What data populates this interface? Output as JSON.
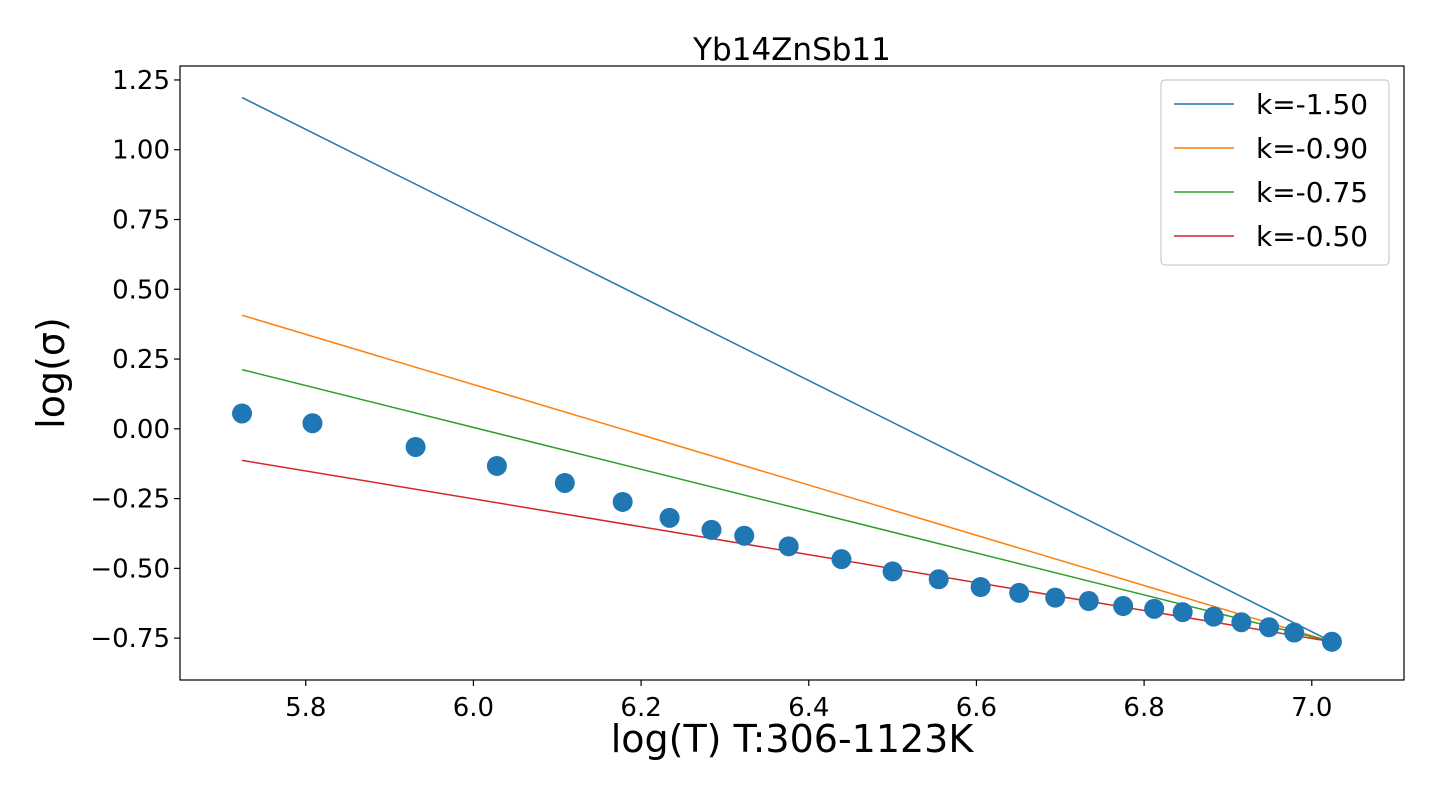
{
  "chart_data": {
    "type": "scatter",
    "title": "Yb14ZnSb11",
    "xlabel": "log(T) T:306-1123K",
    "ylabel": "log(σ)",
    "xlim": [
      5.65,
      7.11
    ],
    "ylim": [
      -0.9,
      1.3
    ],
    "xticks": [
      5.8,
      6.0,
      6.2,
      6.4,
      6.6,
      6.8,
      7.0
    ],
    "yticks": [
      -0.75,
      -0.5,
      -0.25,
      0.0,
      0.25,
      0.5,
      0.75,
      1.0,
      1.25
    ],
    "xtick_labels": [
      "5.8",
      "6.0",
      "6.2",
      "6.4",
      "6.6",
      "6.8",
      "7.0"
    ],
    "ytick_labels": [
      "−0.75",
      "−0.50",
      "−0.25",
      "0.00",
      "0.25",
      "0.50",
      "0.75",
      "1.00",
      "1.25"
    ],
    "grid": false,
    "legend_position": "top-right",
    "points": {
      "color": "#1f77b4",
      "x": [
        5.724,
        5.808,
        5.931,
        6.028,
        6.109,
        6.178,
        6.234,
        6.284,
        6.323,
        6.376,
        6.439,
        6.5,
        6.555,
        6.605,
        6.651,
        6.694,
        6.734,
        6.775,
        6.812,
        6.846,
        6.883,
        6.916,
        6.949,
        6.979,
        7.024
      ],
      "y": [
        0.055,
        0.02,
        -0.065,
        -0.133,
        -0.194,
        -0.262,
        -0.319,
        -0.362,
        -0.383,
        -0.421,
        -0.467,
        -0.511,
        -0.539,
        -0.567,
        -0.588,
        -0.605,
        -0.617,
        -0.635,
        -0.645,
        -0.657,
        -0.673,
        -0.693,
        -0.711,
        -0.73,
        -0.763
      ]
    },
    "series": [
      {
        "name": "k=-1.50",
        "color": "#1f77b4",
        "x": [
          5.724,
          7.024
        ],
        "y": [
          1.187,
          -0.763
        ]
      },
      {
        "name": "k=-0.90",
        "color": "#ff7f0e",
        "x": [
          5.724,
          7.024
        ],
        "y": [
          0.407,
          -0.763
        ]
      },
      {
        "name": "k=-0.75",
        "color": "#2ca02c",
        "x": [
          5.724,
          7.024
        ],
        "y": [
          0.212,
          -0.763
        ]
      },
      {
        "name": "k=-0.50",
        "color": "#d62728",
        "x": [
          5.724,
          7.024
        ],
        "y": [
          -0.113,
          -0.763
        ]
      }
    ]
  }
}
